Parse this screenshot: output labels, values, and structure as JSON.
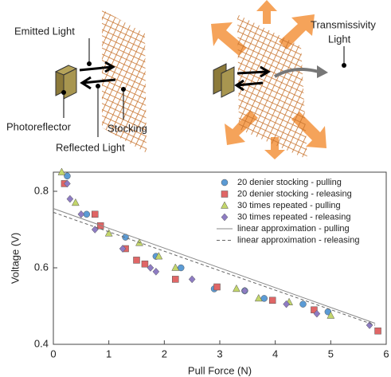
{
  "diagram": {
    "left": {
      "emitted": "Emitted Light",
      "sensor": "Photoreflector",
      "reflected": "Reflected Light",
      "stocking": "Stocking"
    },
    "right": {
      "transmissivity": "Transmissivity",
      "light": "Light"
    }
  },
  "chart_data": {
    "type": "scatter",
    "xlabel": "Pull Force (N)",
    "ylabel": "Voltage (V)",
    "xlim": [
      0,
      6
    ],
    "ylim": [
      0.4,
      0.85
    ],
    "xticks": [
      0,
      1,
      2,
      3,
      4,
      5,
      6
    ],
    "yticks": [
      0.4,
      0.6,
      0.8
    ],
    "legend": "upper right",
    "series": [
      {
        "name": "20 denier stocking - pulling",
        "color": "#5b9bd5",
        "marker": "circle",
        "x": [
          0.25,
          0.6,
          1.3,
          1.85,
          2.3,
          2.9,
          3.45,
          3.8,
          4.5,
          4.95
        ],
        "values": [
          0.84,
          0.74,
          0.68,
          0.63,
          0.6,
          0.545,
          0.54,
          0.52,
          0.505,
          0.485
        ]
      },
      {
        "name": "20 denier stocking - releasing",
        "color": "#e06666",
        "marker": "square",
        "x": [
          0.2,
          0.75,
          0.85,
          1.3,
          1.5,
          1.65,
          2.2,
          2.95,
          3.95,
          4.7,
          5.85
        ],
        "values": [
          0.82,
          0.74,
          0.71,
          0.65,
          0.62,
          0.61,
          0.57,
          0.55,
          0.515,
          0.49,
          0.435
        ]
      },
      {
        "name": "30 times repeated - pulling",
        "color": "#c3d66b",
        "marker": "triangle",
        "x": [
          0.15,
          0.4,
          1.0,
          1.55,
          1.9,
          2.2,
          3.3,
          3.7,
          4.25,
          5.0
        ],
        "values": [
          0.85,
          0.77,
          0.69,
          0.665,
          0.63,
          0.6,
          0.545,
          0.52,
          0.51,
          0.475
        ]
      },
      {
        "name": "30 times repeated - releasing",
        "color": "#8e7cc3",
        "marker": "diamond",
        "x": [
          0.25,
          0.3,
          0.5,
          0.75,
          1.25,
          1.75,
          1.85,
          2.5,
          3.45,
          4.2,
          4.75,
          5.7
        ],
        "values": [
          0.82,
          0.78,
          0.74,
          0.7,
          0.65,
          0.6,
          0.59,
          0.57,
          0.54,
          0.505,
          0.48,
          0.45
        ]
      },
      {
        "name": "linear approximation - pulling",
        "color": "#888888",
        "style": "solid",
        "x": [
          0,
          5.8
        ],
        "values": [
          0.755,
          0.455
        ]
      },
      {
        "name": "linear approximation - releasing",
        "color": "#666666",
        "style": "dashed",
        "x": [
          0,
          5.8
        ],
        "values": [
          0.745,
          0.45
        ]
      }
    ]
  }
}
